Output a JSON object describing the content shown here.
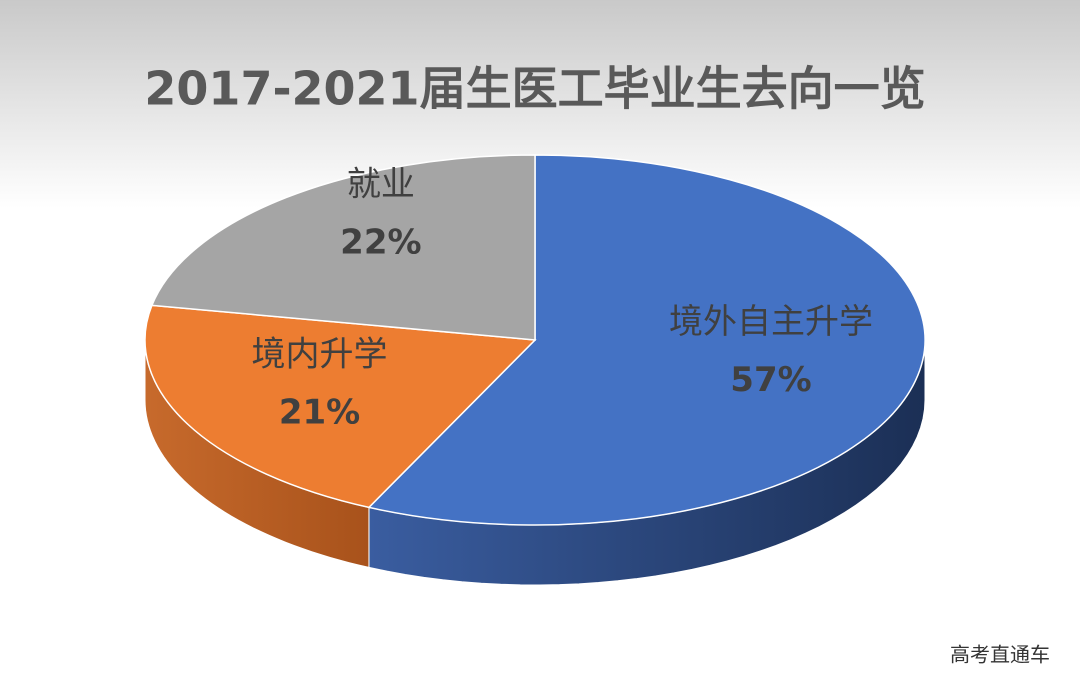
{
  "chart_data": {
    "type": "pie3d",
    "title": "2017-2021届生医工毕业生去向一览",
    "categories": [
      "境外自主升学",
      "境内升学",
      "就业"
    ],
    "values": [
      57,
      21,
      22
    ],
    "value_labels": [
      "57%",
      "21%",
      "22%"
    ],
    "colors": [
      "#4472c4",
      "#ed7d31",
      "#a5a5a5"
    ]
  },
  "watermark": "高考直通车"
}
